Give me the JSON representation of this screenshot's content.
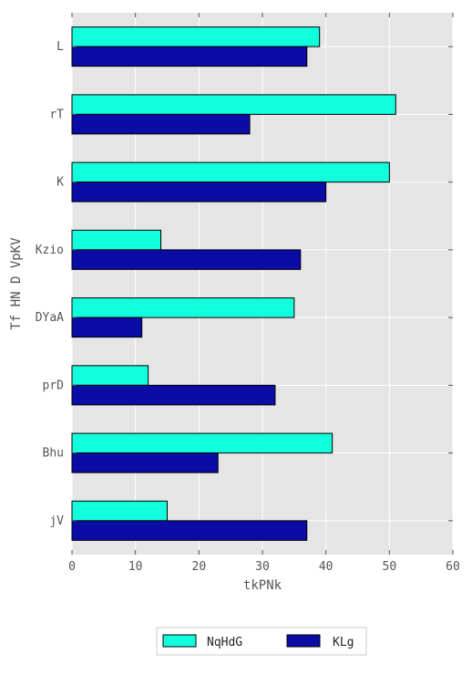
{
  "chart_data": {
    "type": "bar",
    "orientation": "horizontal",
    "title": "",
    "xlabel": "tkPNk",
    "ylabel": "Tf  HN D VpKV",
    "categories": [
      "L",
      "rT",
      "K",
      "Kzio",
      "DYaA",
      "prD",
      "Bhu",
      "jV"
    ],
    "xlim": [
      0,
      60
    ],
    "xticks": [
      "0",
      "10",
      "20",
      "30",
      "40",
      "50",
      "60"
    ],
    "grid": true,
    "legend_position": "bottom-center",
    "series": [
      {
        "name": "NqHdG",
        "color": "#11ffdd",
        "values": [
          39,
          51,
          50,
          14,
          35,
          12,
          41,
          15
        ]
      },
      {
        "name": "KLg",
        "color": "#0b0ba6",
        "values": [
          37,
          28,
          40,
          36,
          11,
          32,
          23,
          37
        ]
      }
    ]
  }
}
